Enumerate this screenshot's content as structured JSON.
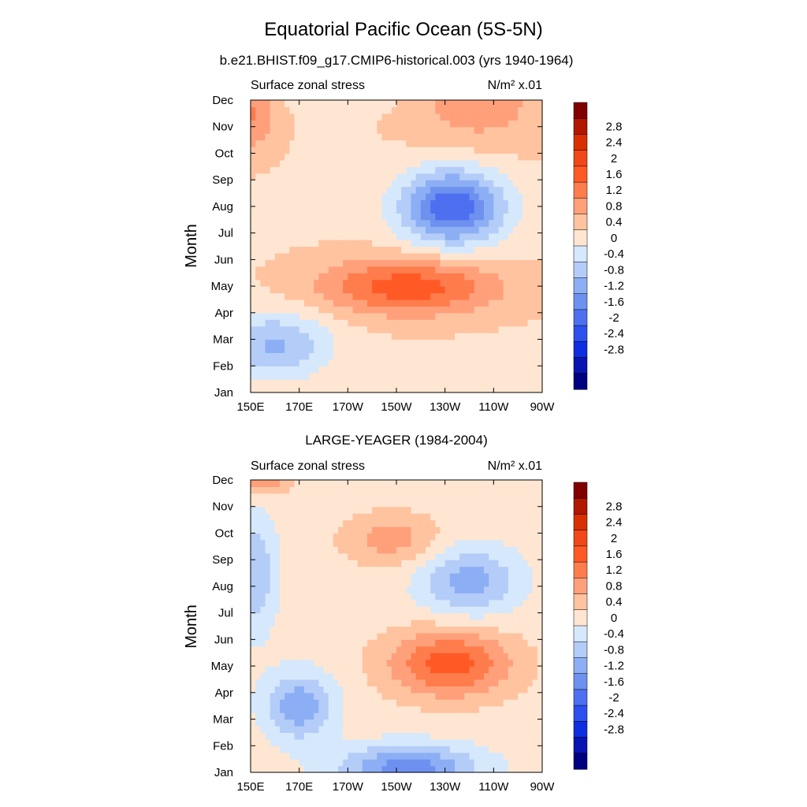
{
  "figure": {
    "title": "Equatorial Pacific Ocean (5S-5N)"
  },
  "chart_data": [
    {
      "type": "heatmap",
      "title": "b.e21.BHIST.f09_g17.CMIP6-historical.003 (yrs 1940-1964)",
      "left_label": "Surface zonal stress",
      "units_label": "N/m² x.01",
      "ylabel": "Month",
      "x_ticks": [
        "150E",
        "170E",
        "170W",
        "150W",
        "130W",
        "110W",
        "90W"
      ],
      "x_range": [
        "150E",
        "90W"
      ],
      "y_ticks": [
        "Jan",
        "Feb",
        "Mar",
        "Apr",
        "May",
        "Jun",
        "Jul",
        "Aug",
        "Sep",
        "Oct",
        "Nov",
        "Dec"
      ],
      "colorbar": {
        "labels": [
          "2.8",
          "2.4",
          "2",
          "1.6",
          "1.2",
          "0.8",
          "0.4",
          "0",
          "-0.4",
          "-0.8",
          "-1.2",
          "-1.6",
          "-2",
          "-2.4",
          "-2.8"
        ],
        "colors": [
          "#800000",
          "#b01800",
          "#d83000",
          "#f04818",
          "#ff5a26",
          "#ff7c4c",
          "#ffa07a",
          "#ffc3a0",
          "#ffe6d2",
          "#d6e8fb",
          "#b4ccf8",
          "#8caef4",
          "#6e91f0",
          "#4d6ff0",
          "#2c4fee",
          "#0f2ee0",
          "#0a14b0",
          "#000080"
        ]
      },
      "pattern": {
        "centers": [
          {
            "lon": 215,
            "month": 4.0,
            "value": 1.5,
            "lon_spread": 26,
            "month_spread": 0.75
          },
          {
            "lon": 150,
            "month": 10.5,
            "value": 0.9,
            "lon_spread": 8,
            "month_spread": 1.0
          },
          {
            "lon": 243,
            "month": 11.0,
            "value": 0.7,
            "lon_spread": 20,
            "month_spread": 1.3
          },
          {
            "lon": 233,
            "month": 7.0,
            "value": -2.3,
            "lon_spread": 15,
            "month_spread": 1.0
          },
          {
            "lon": 160,
            "month": 1.8,
            "value": -1.2,
            "lon_spread": 16,
            "month_spread": 0.9
          },
          {
            "lon": 188,
            "month": 11.6,
            "value": -0.5,
            "lon_spread": 22,
            "month_spread": 0.6
          }
        ],
        "background": 0.35,
        "diagonal_shift": -11
      }
    },
    {
      "type": "heatmap",
      "title": "LARGE-YEAGER (1984-2004)",
      "left_label": "Surface zonal stress",
      "units_label": "N/m² x.01",
      "ylabel": "Month",
      "x_ticks": [
        "150E",
        "170E",
        "170W",
        "150W",
        "130W",
        "110W",
        "90W"
      ],
      "x_range": [
        "150E",
        "90W"
      ],
      "y_ticks": [
        "Jan",
        "Feb",
        "Mar",
        "Apr",
        "May",
        "Jun",
        "Jul",
        "Aug",
        "Sep",
        "Oct",
        "Nov",
        "Dec"
      ],
      "colorbar": {
        "labels": [
          "2.8",
          "2.4",
          "2",
          "1.6",
          "1.2",
          "0.8",
          "0.4",
          "0",
          "-0.4",
          "-0.8",
          "-1.2",
          "-1.6",
          "-2",
          "-2.4",
          "-2.8"
        ],
        "colors": [
          "#800000",
          "#b01800",
          "#d83000",
          "#f04818",
          "#ff5a26",
          "#ff7c4c",
          "#ffa07a",
          "#ffc3a0",
          "#ffe6d2",
          "#d6e8fb",
          "#b4ccf8",
          "#8caef4",
          "#6e91f0",
          "#4d6ff0",
          "#2c4fee",
          "#0f2ee0",
          "#0a14b0",
          "#000080"
        ]
      },
      "pattern": {
        "centers": [
          {
            "lon": 232,
            "month": 4.1,
            "value": 1.6,
            "lon_spread": 18,
            "month_spread": 0.9
          },
          {
            "lon": 155,
            "month": 11.8,
            "value": 2.0,
            "lon_spread": 8,
            "month_spread": 0.7
          },
          {
            "lon": 208,
            "month": 8.8,
            "value": 0.8,
            "lon_spread": 14,
            "month_spread": 0.7
          },
          {
            "lon": 240,
            "month": 7.2,
            "value": -1.2,
            "lon_spread": 14,
            "month_spread": 0.9
          },
          {
            "lon": 170,
            "month": 2.5,
            "value": -1.3,
            "lon_spread": 10,
            "month_spread": 0.9
          },
          {
            "lon": 215,
            "month": 0.2,
            "value": -1.6,
            "lon_spread": 20,
            "month_spread": 0.6
          },
          {
            "lon": 225,
            "month": 11.9,
            "value": -1.2,
            "lon_spread": 18,
            "month_spread": 0.5
          },
          {
            "lon": 152,
            "month": 7.5,
            "value": -1.0,
            "lon_spread": 6,
            "month_spread": 1.5
          }
        ],
        "background": 0.2,
        "diagonal_shift": 0
      }
    }
  ]
}
